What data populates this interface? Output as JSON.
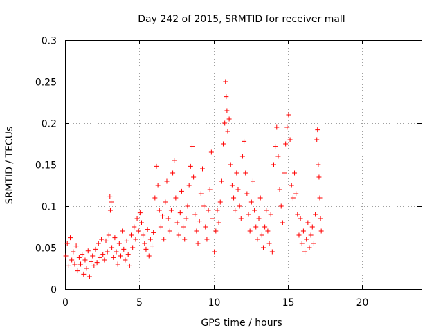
{
  "chart_data": {
    "type": "scatter",
    "title": "Day 242 of 2015, SRMTID for receiver mall",
    "xlabel": "GPS time / hours",
    "ylabel": "SRMTID / TECUs",
    "xlim": [
      0,
      24
    ],
    "ylim": [
      0,
      0.3
    ],
    "x_ticks": [
      0,
      5,
      10,
      15,
      20
    ],
    "x_tick_labels": [
      "0",
      "5",
      "10",
      "15",
      "20"
    ],
    "y_ticks": [
      0,
      0.05,
      0.1,
      0.15,
      0.2,
      0.25,
      0.3
    ],
    "y_tick_labels": [
      "0",
      "0.05",
      "0.1",
      "0.15",
      "0.2",
      "0.25",
      "0.3"
    ],
    "grid": true,
    "marker": "+",
    "color": "#ff0000",
    "points": [
      [
        0.05,
        0.04
      ],
      [
        0.15,
        0.055
      ],
      [
        0.25,
        0.028
      ],
      [
        0.35,
        0.062
      ],
      [
        0.45,
        0.035
      ],
      [
        0.55,
        0.045
      ],
      [
        0.65,
        0.03
      ],
      [
        0.75,
        0.052
      ],
      [
        0.85,
        0.022
      ],
      [
        0.95,
        0.038
      ],
      [
        1.05,
        0.03
      ],
      [
        1.15,
        0.042
      ],
      [
        1.25,
        0.018
      ],
      [
        1.35,
        0.035
      ],
      [
        1.45,
        0.025
      ],
      [
        1.55,
        0.046
      ],
      [
        1.65,
        0.015
      ],
      [
        1.75,
        0.033
      ],
      [
        1.85,
        0.04
      ],
      [
        1.95,
        0.028
      ],
      [
        2.05,
        0.048
      ],
      [
        2.15,
        0.032
      ],
      [
        2.25,
        0.055
      ],
      [
        2.35,
        0.038
      ],
      [
        2.45,
        0.06
      ],
      [
        2.55,
        0.042
      ],
      [
        2.65,
        0.035
      ],
      [
        2.75,
        0.058
      ],
      [
        2.85,
        0.045
      ],
      [
        2.95,
        0.065
      ],
      [
        3.02,
        0.112
      ],
      [
        3.1,
        0.105
      ],
      [
        3.05,
        0.095
      ],
      [
        3.15,
        0.05
      ],
      [
        3.25,
        0.038
      ],
      [
        3.35,
        0.062
      ],
      [
        3.45,
        0.045
      ],
      [
        3.55,
        0.03
      ],
      [
        3.65,
        0.055
      ],
      [
        3.75,
        0.04
      ],
      [
        3.85,
        0.07
      ],
      [
        3.95,
        0.048
      ],
      [
        4.05,
        0.035
      ],
      [
        4.15,
        0.058
      ],
      [
        4.25,
        0.042
      ],
      [
        4.35,
        0.028
      ],
      [
        4.45,
        0.065
      ],
      [
        4.55,
        0.05
      ],
      [
        4.65,
        0.075
      ],
      [
        4.75,
        0.06
      ],
      [
        4.85,
        0.085
      ],
      [
        4.95,
        0.07
      ],
      [
        5.05,
        0.092
      ],
      [
        5.15,
        0.08
      ],
      [
        5.25,
        0.065
      ],
      [
        5.35,
        0.055
      ],
      [
        5.45,
        0.048
      ],
      [
        5.55,
        0.072
      ],
      [
        5.65,
        0.04
      ],
      [
        5.75,
        0.06
      ],
      [
        5.85,
        0.052
      ],
      [
        5.95,
        0.068
      ],
      [
        6.05,
        0.11
      ],
      [
        6.15,
        0.148
      ],
      [
        6.25,
        0.125
      ],
      [
        6.35,
        0.095
      ],
      [
        6.45,
        0.075
      ],
      [
        6.55,
        0.088
      ],
      [
        6.65,
        0.06
      ],
      [
        6.75,
        0.105
      ],
      [
        6.85,
        0.13
      ],
      [
        6.95,
        0.085
      ],
      [
        7.05,
        0.07
      ],
      [
        7.15,
        0.095
      ],
      [
        7.25,
        0.14
      ],
      [
        7.35,
        0.155
      ],
      [
        7.45,
        0.11
      ],
      [
        7.55,
        0.08
      ],
      [
        7.65,
        0.065
      ],
      [
        7.75,
        0.092
      ],
      [
        7.85,
        0.118
      ],
      [
        7.95,
        0.075
      ],
      [
        8.05,
        0.06
      ],
      [
        8.15,
        0.085
      ],
      [
        8.25,
        0.1
      ],
      [
        8.35,
        0.125
      ],
      [
        8.45,
        0.148
      ],
      [
        8.55,
        0.172
      ],
      [
        8.65,
        0.135
      ],
      [
        8.75,
        0.09
      ],
      [
        8.85,
        0.07
      ],
      [
        8.95,
        0.055
      ],
      [
        9.05,
        0.082
      ],
      [
        9.15,
        0.115
      ],
      [
        9.25,
        0.145
      ],
      [
        9.35,
        0.1
      ],
      [
        9.45,
        0.075
      ],
      [
        9.55,
        0.06
      ],
      [
        9.65,
        0.095
      ],
      [
        9.75,
        0.12
      ],
      [
        9.85,
        0.165
      ],
      [
        9.95,
        0.085
      ],
      [
        10.05,
        0.045
      ],
      [
        10.15,
        0.07
      ],
      [
        10.25,
        0.095
      ],
      [
        10.35,
        0.08
      ],
      [
        10.45,
        0.105
      ],
      [
        10.55,
        0.13
      ],
      [
        10.65,
        0.175
      ],
      [
        10.75,
        0.2
      ],
      [
        10.8,
        0.25
      ],
      [
        10.85,
        0.232
      ],
      [
        10.9,
        0.215
      ],
      [
        10.95,
        0.19
      ],
      [
        11.05,
        0.205
      ],
      [
        11.15,
        0.15
      ],
      [
        11.25,
        0.125
      ],
      [
        11.35,
        0.11
      ],
      [
        11.45,
        0.095
      ],
      [
        11.55,
        0.14
      ],
      [
        11.65,
        0.12
      ],
      [
        11.75,
        0.1
      ],
      [
        11.85,
        0.085
      ],
      [
        11.95,
        0.16
      ],
      [
        12.05,
        0.178
      ],
      [
        12.15,
        0.14
      ],
      [
        12.25,
        0.115
      ],
      [
        12.35,
        0.09
      ],
      [
        12.45,
        0.07
      ],
      [
        12.55,
        0.105
      ],
      [
        12.65,
        0.13
      ],
      [
        12.75,
        0.095
      ],
      [
        12.85,
        0.075
      ],
      [
        12.95,
        0.06
      ],
      [
        13.05,
        0.085
      ],
      [
        13.15,
        0.11
      ],
      [
        13.25,
        0.065
      ],
      [
        13.35,
        0.05
      ],
      [
        13.45,
        0.075
      ],
      [
        13.55,
        0.095
      ],
      [
        13.65,
        0.07
      ],
      [
        13.75,
        0.055
      ],
      [
        13.85,
        0.09
      ],
      [
        13.95,
        0.045
      ],
      [
        14.05,
        0.15
      ],
      [
        14.15,
        0.172
      ],
      [
        14.25,
        0.195
      ],
      [
        14.35,
        0.16
      ],
      [
        14.45,
        0.12
      ],
      [
        14.55,
        0.1
      ],
      [
        14.65,
        0.08
      ],
      [
        14.75,
        0.14
      ],
      [
        14.85,
        0.175
      ],
      [
        14.95,
        0.195
      ],
      [
        15.05,
        0.21
      ],
      [
        15.15,
        0.18
      ],
      [
        15.25,
        0.125
      ],
      [
        15.35,
        0.11
      ],
      [
        15.45,
        0.14
      ],
      [
        15.55,
        0.115
      ],
      [
        15.65,
        0.09
      ],
      [
        15.75,
        0.065
      ],
      [
        15.85,
        0.085
      ],
      [
        15.95,
        0.055
      ],
      [
        16.05,
        0.07
      ],
      [
        16.15,
        0.045
      ],
      [
        16.25,
        0.06
      ],
      [
        16.35,
        0.08
      ],
      [
        16.45,
        0.05
      ],
      [
        16.55,
        0.065
      ],
      [
        16.65,
        0.075
      ],
      [
        16.75,
        0.055
      ],
      [
        16.85,
        0.09
      ],
      [
        16.95,
        0.18
      ],
      [
        17.0,
        0.192
      ],
      [
        17.05,
        0.15
      ],
      [
        17.1,
        0.135
      ],
      [
        17.15,
        0.11
      ],
      [
        17.2,
        0.085
      ],
      [
        17.25,
        0.07
      ]
    ]
  }
}
